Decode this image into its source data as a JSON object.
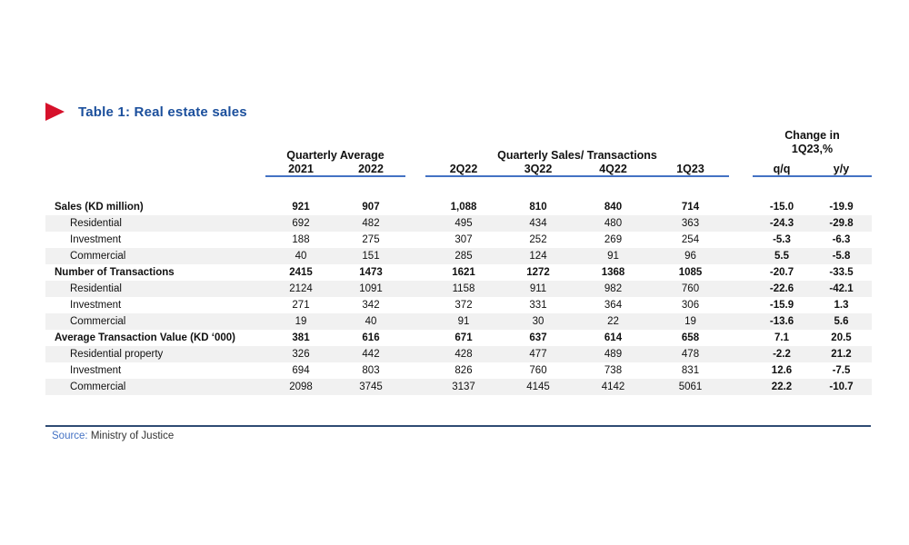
{
  "title": {
    "text": "Table 1: Real estate sales"
  },
  "colors": {
    "title_blue": "#1b4f9c",
    "marker_red": "#d6112b",
    "underline_blue": "#4472c4",
    "rule_navy": "#2e4b73",
    "row_shade": "#f1f1f1"
  },
  "table": {
    "groups": [
      {
        "label": "Quarterly Average"
      },
      {
        "label": "Quarterly Sales/ Transactions"
      },
      {
        "label_line1": "Change in",
        "label_line2": "1Q23,%"
      }
    ],
    "columns": [
      "2021",
      "2022",
      "2Q22",
      "3Q22",
      "4Q22",
      "1Q23",
      "q/q",
      "y/y"
    ],
    "rows": [
      {
        "label": "Sales (KD million)",
        "bold": true,
        "indent": false,
        "shaded": false,
        "values": [
          "921",
          "907",
          "1,088",
          "810",
          "840",
          "714",
          "-15.0",
          "-19.9"
        ]
      },
      {
        "label": "Residential",
        "bold": false,
        "indent": true,
        "shaded": true,
        "values": [
          "692",
          "482",
          "495",
          "434",
          "480",
          "363",
          "-24.3",
          "-29.8"
        ]
      },
      {
        "label": "Investment",
        "bold": false,
        "indent": true,
        "shaded": false,
        "values": [
          "188",
          "275",
          "307",
          "252",
          "269",
          "254",
          "-5.3",
          "-6.3"
        ]
      },
      {
        "label": "Commercial",
        "bold": false,
        "indent": true,
        "shaded": true,
        "values": [
          "40",
          "151",
          "285",
          "124",
          "91",
          "96",
          "5.5",
          "-5.8"
        ]
      },
      {
        "label": "Number of Transactions",
        "bold": true,
        "indent": false,
        "shaded": false,
        "values": [
          "2415",
          "1473",
          "1621",
          "1272",
          "1368",
          "1085",
          "-20.7",
          "-33.5"
        ]
      },
      {
        "label": "Residential",
        "bold": false,
        "indent": true,
        "shaded": true,
        "values": [
          "2124",
          "1091",
          "1158",
          "911",
          "982",
          "760",
          "-22.6",
          "-42.1"
        ]
      },
      {
        "label": "Investment",
        "bold": false,
        "indent": true,
        "shaded": false,
        "values": [
          "271",
          "342",
          "372",
          "331",
          "364",
          "306",
          "-15.9",
          "1.3"
        ]
      },
      {
        "label": "Commercial",
        "bold": false,
        "indent": true,
        "shaded": true,
        "values": [
          "19",
          "40",
          "91",
          "30",
          "22",
          "19",
          "-13.6",
          "5.6"
        ]
      },
      {
        "label": "Average Transaction Value (KD ‘000)",
        "bold": true,
        "indent": false,
        "shaded": false,
        "values": [
          "381",
          "616",
          "671",
          "637",
          "614",
          "658",
          "7.1",
          "20.5"
        ]
      },
      {
        "label": "Residential property",
        "bold": false,
        "indent": true,
        "shaded": true,
        "values": [
          "326",
          "442",
          "428",
          "477",
          "489",
          "478",
          "-2.2",
          "21.2"
        ]
      },
      {
        "label": "Investment",
        "bold": false,
        "indent": true,
        "shaded": false,
        "values": [
          "694",
          "803",
          "826",
          "760",
          "738",
          "831",
          "12.6",
          "-7.5"
        ]
      },
      {
        "label": "Commercial",
        "bold": false,
        "indent": true,
        "shaded": true,
        "values": [
          "2098",
          "3745",
          "3137",
          "4145",
          "4142",
          "5061",
          "22.2",
          "-10.7"
        ]
      }
    ]
  },
  "footer": {
    "source_label": "Source:",
    "source_text": "Ministry of Justice"
  }
}
